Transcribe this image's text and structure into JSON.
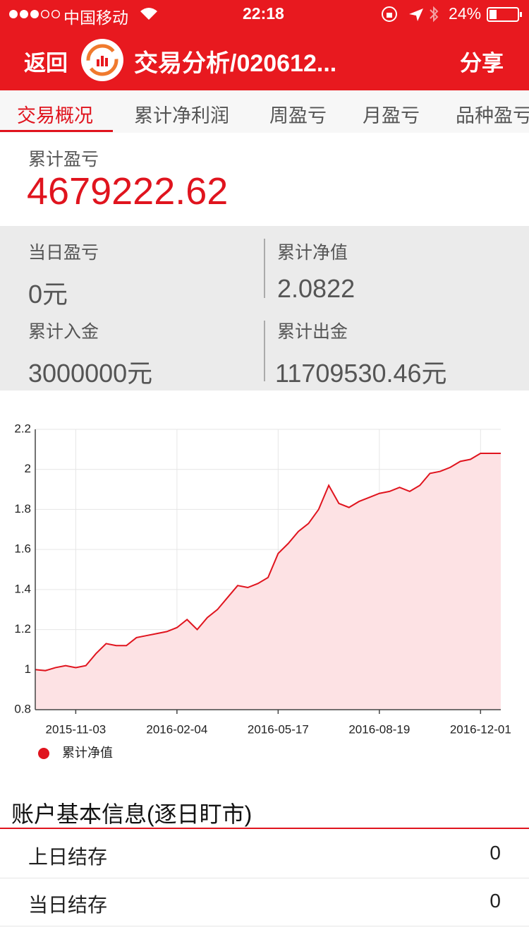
{
  "status_bar": {
    "carrier": "中国移动",
    "time": "22:18",
    "battery": "24%"
  },
  "nav": {
    "back": "返回",
    "title": "交易分析/020612...",
    "share": "分享"
  },
  "tabs": [
    "交易概况",
    "累计净利润",
    "周盈亏",
    "月盈亏",
    "品种盈亏"
  ],
  "summary": {
    "label": "累计盈亏",
    "value": "4679222.62"
  },
  "stats": [
    {
      "label": "当日盈亏",
      "value": "0元"
    },
    {
      "label": "累计净值",
      "value": "2.0822"
    },
    {
      "label": "累计入金",
      "value": "3000000元"
    },
    {
      "label": "累计出金",
      "value": "11709530.46元"
    }
  ],
  "chart_data": {
    "type": "line",
    "x": [
      null,
      null,
      null,
      null,
      "2015-11-03",
      null,
      null,
      null,
      null,
      null,
      null,
      null,
      null,
      null,
      "2016-02-04",
      null,
      null,
      null,
      null,
      null,
      null,
      null,
      null,
      null,
      "2016-05-17",
      null,
      null,
      null,
      null,
      null,
      null,
      null,
      null,
      null,
      "2016-08-19",
      null,
      null,
      null,
      null,
      null,
      null,
      null,
      null,
      null,
      "2016-12-01",
      null,
      null
    ],
    "series": [
      {
        "name": "累计净值",
        "color": "#e0141e",
        "values": [
          1.0,
          0.995,
          1.01,
          1.02,
          1.01,
          1.02,
          1.08,
          1.13,
          1.12,
          1.12,
          1.16,
          1.17,
          1.18,
          1.19,
          1.21,
          1.25,
          1.2,
          1.26,
          1.3,
          1.36,
          1.42,
          1.41,
          1.43,
          1.46,
          1.58,
          1.63,
          1.69,
          1.73,
          1.8,
          1.92,
          1.83,
          1.81,
          1.84,
          1.86,
          1.88,
          1.89,
          1.91,
          1.89,
          1.92,
          1.98,
          1.99,
          2.01,
          2.04,
          2.05,
          2.08,
          2.08,
          2.08
        ]
      }
    ],
    "area_color": "#fde2e4",
    "ylim": [
      0.8,
      2.2
    ],
    "yticks": [
      0.8,
      1,
      1.2,
      1.4,
      1.6,
      1.8,
      2,
      2.2
    ],
    "grid": true
  },
  "section": {
    "title": "账户基本信息(逐日盯市)",
    "rows": [
      {
        "label": "上日结存",
        "value": "0"
      },
      {
        "label": "当日结存",
        "value": "0"
      }
    ]
  }
}
